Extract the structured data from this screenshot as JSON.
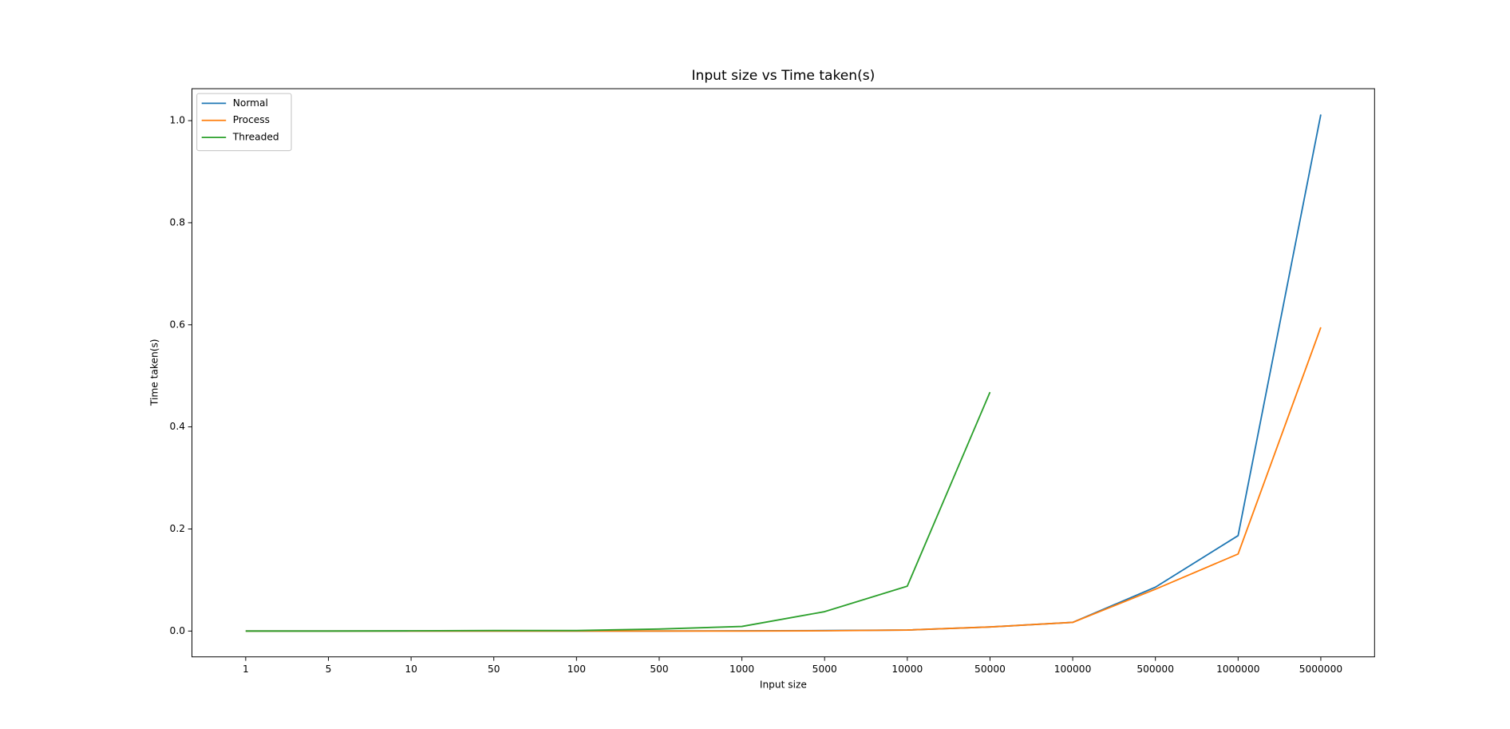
{
  "chart_data": {
    "type": "line",
    "title": "Input size vs Time taken(s)",
    "x_label": "Input size",
    "y_label": "Time taken(s)",
    "categories": [
      "1",
      "5",
      "10",
      "50",
      "100",
      "500",
      "1000",
      "5000",
      "10000",
      "50000",
      "100000",
      "500000",
      "1000000",
      "5000000"
    ],
    "series": [
      {
        "name": "Normal",
        "color": "#1f77b4",
        "values": [
          0,
          0,
          0,
          0,
          0,
          0,
          0.0005,
          0.001,
          0.002,
          0.008,
          0.017,
          0.086,
          0.187,
          1.012
        ]
      },
      {
        "name": "Process",
        "color": "#ff7f0e",
        "values": [
          0,
          0,
          0,
          0,
          0,
          0,
          0,
          0.0005,
          0.002,
          0.008,
          0.017,
          0.082,
          0.151,
          0.595
        ]
      },
      {
        "name": "Threaded",
        "color": "#2ca02c",
        "values": [
          0,
          0,
          0.0005,
          0.001,
          0.001,
          0.004,
          0.009,
          0.038,
          0.088,
          0.468,
          null,
          null,
          null,
          null
        ]
      }
    ],
    "ylim": [
      -0.0506,
      1.0626
    ],
    "yticks": [
      {
        "value": 0,
        "label": "0.0"
      },
      0.2,
      0.4,
      0.6,
      0.8,
      {
        "value": 1,
        "label": "1.0"
      }
    ],
    "legend": "upper left"
  }
}
